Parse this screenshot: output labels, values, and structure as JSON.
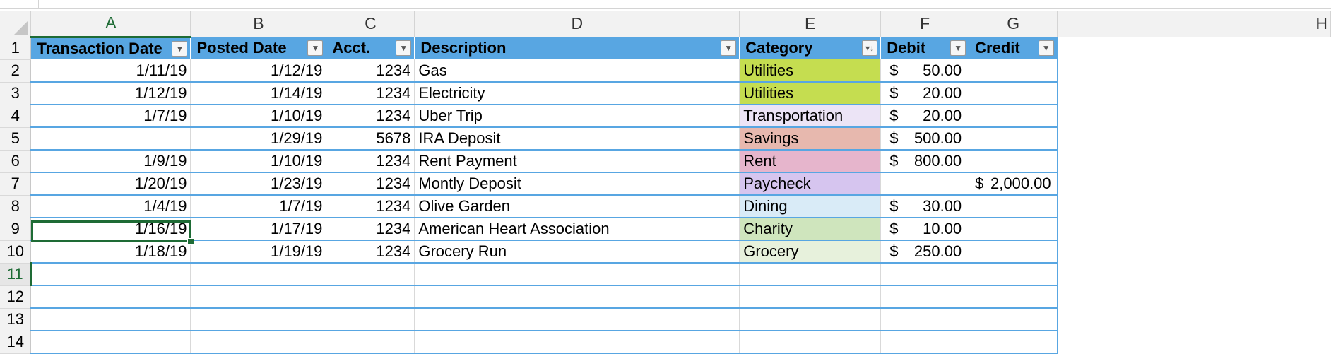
{
  "columns": [
    "A",
    "B",
    "C",
    "D",
    "E",
    "F",
    "G",
    "H"
  ],
  "active_column": "A",
  "active_row": 11,
  "header_row": {
    "row_number": 1,
    "labels": [
      "Transaction Date",
      "Posted Date",
      "Acct.",
      "Description",
      "Category",
      "Debit",
      "Credit"
    ],
    "filter_icons": [
      "filter-dropdown-icon",
      "filter-dropdown-icon",
      "filter-dropdown-icon",
      "filter-dropdown-icon",
      "sort-descending-filter-icon",
      "filter-dropdown-icon",
      "filter-dropdown-icon"
    ]
  },
  "rows": [
    {
      "row": 2,
      "transaction_date": "1/11/19",
      "posted_date": "1/12/19",
      "acct": "1234",
      "description": "Gas",
      "category": "Utilities",
      "category_color": "#c5dd50",
      "debit_symbol": "$",
      "debit": "50.00",
      "credit": ""
    },
    {
      "row": 3,
      "transaction_date": "1/12/19",
      "posted_date": "1/14/19",
      "acct": "1234",
      "description": "Electricity",
      "category": "Utilities",
      "category_color": "#c5dd50",
      "debit_symbol": "$",
      "debit": "20.00",
      "credit": ""
    },
    {
      "row": 4,
      "transaction_date": "1/7/19",
      "posted_date": "1/10/19",
      "acct": "1234",
      "description": "Uber Trip",
      "category": "Transportation",
      "category_color": "#ece4f6",
      "debit_symbol": "$",
      "debit": "20.00",
      "credit": ""
    },
    {
      "row": 5,
      "transaction_date": "",
      "posted_date": "1/29/19",
      "acct": "5678",
      "description": "IRA Deposit",
      "category": "Savings",
      "category_color": "#e7b8ae",
      "debit_symbol": "$",
      "debit": "500.00",
      "credit": ""
    },
    {
      "row": 6,
      "transaction_date": "1/9/19",
      "posted_date": "1/10/19",
      "acct": "1234",
      "description": "Rent Payment",
      "category": "Rent",
      "category_color": "#e6b5cc",
      "debit_symbol": "$",
      "debit": "800.00",
      "credit": ""
    },
    {
      "row": 7,
      "transaction_date": "1/20/19",
      "posted_date": "1/23/19",
      "acct": "1234",
      "description": "Montly Deposit",
      "category": "Paycheck",
      "category_color": "#d6c5ef",
      "debit_symbol": "",
      "debit": "",
      "credit_symbol": "$",
      "credit": "2,000.00"
    },
    {
      "row": 8,
      "transaction_date": "1/4/19",
      "posted_date": "1/7/19",
      "acct": "1234",
      "description": "Olive Garden",
      "category": "Dining",
      "category_color": "#d9ebf7",
      "debit_symbol": "$",
      "debit": "30.00",
      "credit": ""
    },
    {
      "row": 9,
      "transaction_date": "1/16/19",
      "posted_date": "1/17/19",
      "acct": "1234",
      "description": "American Heart Association",
      "category": "Charity",
      "category_color": "#cfe5bd",
      "debit_symbol": "$",
      "debit": "10.00",
      "credit": ""
    },
    {
      "row": 10,
      "transaction_date": "1/18/19",
      "posted_date": "1/19/19",
      "acct": "1234",
      "description": "Grocery Run",
      "category": "Grocery",
      "category_color": "#e7f1dc",
      "debit_symbol": "$",
      "debit": "250.00",
      "credit": ""
    }
  ],
  "empty_rows": [
    11,
    12,
    13,
    14
  ],
  "colors": {
    "header_fill": "#58a6e2",
    "table_border": "#58a6e2",
    "selection": "#1e6b35"
  }
}
